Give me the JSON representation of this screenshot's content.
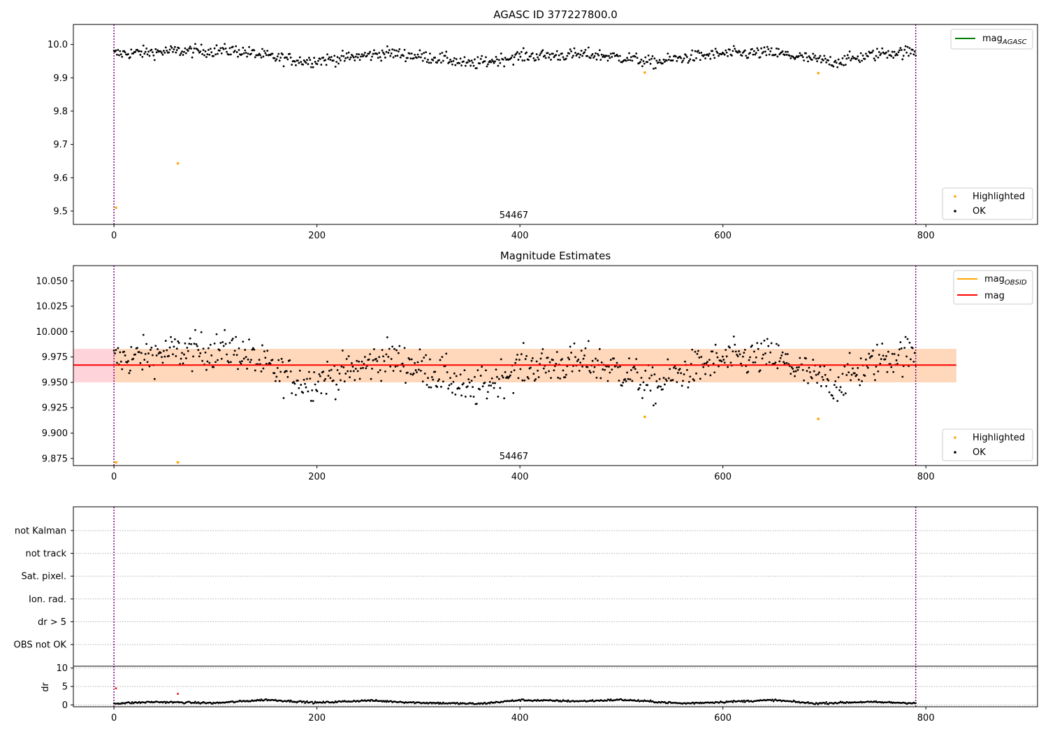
{
  "chart_data": [
    {
      "panel": "agasc",
      "type": "scatter",
      "title": "AGASC ID 377227800.0",
      "x_range": [
        -40,
        910
      ],
      "y_range": [
        9.46,
        10.06
      ],
      "x_ticks": [
        0,
        200,
        400,
        600,
        800
      ],
      "y_ticks": [
        9.5,
        9.6,
        9.7,
        9.8,
        9.9,
        10.0
      ],
      "y_tick_labels": [
        "9.5",
        "9.6",
        "9.7",
        "9.8",
        "9.9",
        "10.0"
      ],
      "vlines_x": [
        0,
        790
      ],
      "vline_color": "#800080",
      "annotation": "54467",
      "annotation_x": 394,
      "legends": [
        {
          "position": "upper right",
          "entries": [
            {
              "label": "mag",
              "subscript": "AGASC",
              "color": "#008000",
              "marker": "line"
            }
          ]
        },
        {
          "position": "lower right",
          "entries": [
            {
              "label": "Highlighted",
              "color": "#ffa500",
              "marker": "dot"
            },
            {
              "label": "OK",
              "color": "#000000",
              "marker": "dot"
            }
          ]
        }
      ],
      "series": [
        {
          "name": "OK",
          "color": "#000000",
          "n_points": 790,
          "x_range": [
            0,
            790
          ],
          "trend_knots": [
            [
              0,
              9.972
            ],
            [
              60,
              9.98
            ],
            [
              120,
              9.982
            ],
            [
              160,
              9.96
            ],
            [
              190,
              9.95
            ],
            [
              230,
              9.96
            ],
            [
              270,
              9.975
            ],
            [
              330,
              9.955
            ],
            [
              350,
              9.94
            ],
            [
              400,
              9.965
            ],
            [
              470,
              9.97
            ],
            [
              510,
              9.958
            ],
            [
              530,
              9.945
            ],
            [
              560,
              9.96
            ],
            [
              600,
              9.972
            ],
            [
              650,
              9.975
            ],
            [
              690,
              9.955
            ],
            [
              710,
              9.948
            ],
            [
              760,
              9.975
            ],
            [
              790,
              9.978
            ]
          ],
          "scatter_sd": 0.013
        },
        {
          "name": "Highlighted",
          "color": "#ffa500",
          "x": [
            2,
            63,
            523,
            694
          ],
          "y": [
            9.51,
            9.643,
            9.916,
            9.914
          ]
        }
      ]
    },
    {
      "panel": "estimates",
      "type": "scatter",
      "title": "Magnitude Estimates",
      "x_range": [
        -40,
        910
      ],
      "y_range": [
        9.868,
        10.065
      ],
      "x_ticks": [
        0,
        200,
        400,
        600,
        800
      ],
      "y_ticks": [
        9.875,
        9.9,
        9.925,
        9.95,
        9.975,
        10.0,
        10.025,
        10.05
      ],
      "y_tick_labels": [
        "9.875",
        "9.900",
        "9.925",
        "9.950",
        "9.975",
        "10.000",
        "10.025",
        "10.050"
      ],
      "vlines_x": [
        0,
        790
      ],
      "vline_color": "#800080",
      "annotation": "54467",
      "annotation_x": 394,
      "mean_line": {
        "y": 9.967,
        "x_range": [
          -40,
          830
        ],
        "color": "#ff0000"
      },
      "band": {
        "y_low": 9.95,
        "y_high": 9.983,
        "x_range": [
          -40,
          830
        ],
        "color": "#ffc0cb"
      },
      "band_obsid": {
        "y_low": 9.95,
        "y_high": 9.983,
        "x_range": [
          0,
          830
        ],
        "color": "#ffd8b0"
      },
      "legends": [
        {
          "position": "upper right",
          "entries": [
            {
              "label": "mag",
              "subscript": "OBSID",
              "color": "#ffa500",
              "marker": "line"
            },
            {
              "label": "mag",
              "color": "#ff0000",
              "marker": "line"
            }
          ]
        },
        {
          "position": "lower right",
          "entries": [
            {
              "label": "Highlighted",
              "color": "#ffa500",
              "marker": "dot"
            },
            {
              "label": "OK",
              "color": "#000000",
              "marker": "dot"
            }
          ]
        }
      ],
      "series": [
        {
          "name": "OK",
          "color": "#000000",
          "same_as_panel": "agasc"
        },
        {
          "name": "Highlighted",
          "color": "#ffa500",
          "x": [
            523,
            694
          ],
          "y": [
            9.916,
            9.914
          ],
          "below_range_x": [
            2,
            63
          ]
        }
      ]
    },
    {
      "panel": "flags",
      "type": "scatter",
      "x_range": [
        -40,
        910
      ],
      "categories": [
        "not Kalman",
        "not track",
        "Sat. pixel.",
        "Ion. rad.",
        "dr > 5",
        "OBS not OK"
      ],
      "vlines_x": [
        0,
        790
      ],
      "vline_color": "#800080",
      "series": []
    },
    {
      "panel": "dr",
      "type": "scatter",
      "ylabel": "dr",
      "x_range": [
        -40,
        910
      ],
      "y_range": [
        -0.5,
        10.5
      ],
      "x_ticks": [
        0,
        200,
        400,
        600,
        800
      ],
      "y_ticks": [
        0,
        5,
        10
      ],
      "y_tick_labels": [
        "0",
        "5",
        "10"
      ],
      "vlines_x": [
        0,
        790
      ],
      "vline_color": "#800080",
      "series": [
        {
          "name": "OK",
          "color": "#000000",
          "n_points": 790,
          "x_range": [
            0,
            790
          ],
          "trend_knots": [
            [
              0,
              0.4
            ],
            [
              40,
              0.8
            ],
            [
              100,
              0.5
            ],
            [
              150,
              1.4
            ],
            [
              200,
              0.6
            ],
            [
              250,
              1.2
            ],
            [
              300,
              0.6
            ],
            [
              360,
              0.3
            ],
            [
              400,
              1.3
            ],
            [
              460,
              1.0
            ],
            [
              500,
              1.4
            ],
            [
              560,
              0.4
            ],
            [
              600,
              0.8
            ],
            [
              650,
              1.3
            ],
            [
              690,
              0.4
            ],
            [
              740,
              0.8
            ],
            [
              790,
              0.5
            ]
          ],
          "scatter_sd": 0.12
        },
        {
          "name": "Highlighted",
          "color": "#ff0000",
          "x": [
            63,
            2
          ],
          "y": [
            3.0,
            4.5
          ]
        }
      ]
    }
  ]
}
